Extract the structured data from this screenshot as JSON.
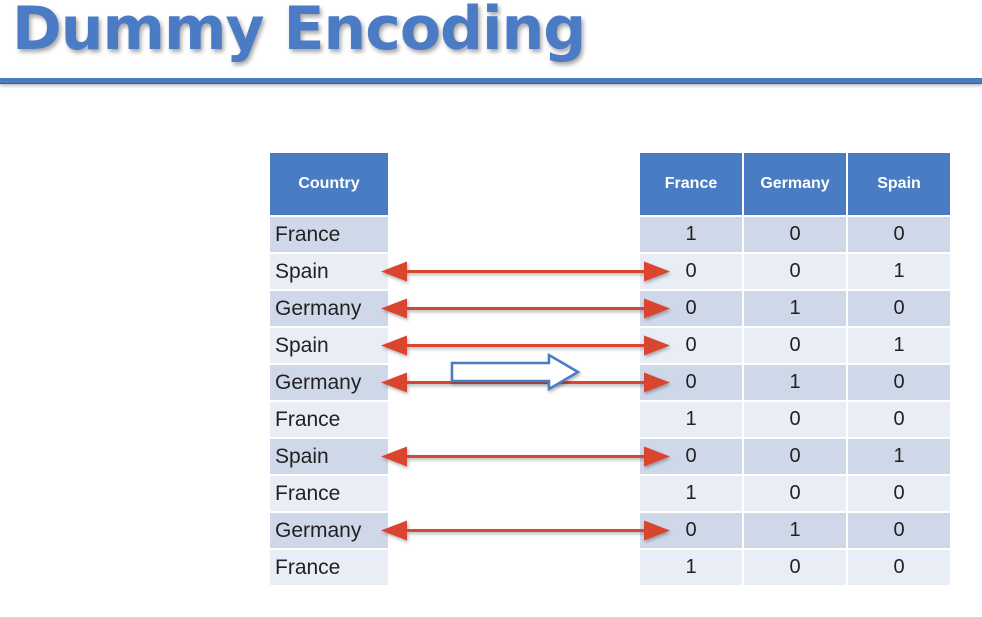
{
  "title": "Dummy Encoding",
  "source_table": {
    "header": "Country",
    "rows": [
      "France",
      "Spain",
      "Germany",
      "Spain",
      "Germany",
      "France",
      "Spain",
      "France",
      "Germany",
      "France"
    ]
  },
  "encoded_table": {
    "headers": [
      "France",
      "Germany",
      "Spain"
    ],
    "rows": [
      [
        "1",
        "0",
        "0"
      ],
      [
        "0",
        "0",
        "1"
      ],
      [
        "0",
        "1",
        "0"
      ],
      [
        "0",
        "0",
        "1"
      ],
      [
        "0",
        "1",
        "0"
      ],
      [
        "1",
        "0",
        "0"
      ],
      [
        "0",
        "0",
        "1"
      ],
      [
        "1",
        "0",
        "0"
      ],
      [
        "0",
        "1",
        "0"
      ],
      [
        "1",
        "0",
        "0"
      ]
    ]
  },
  "arrow_rows": [
    1,
    2,
    3,
    4,
    6,
    8
  ],
  "colors": {
    "title": "#4a7bc4",
    "header_fill": "#4a7cc3",
    "row_dark": "#cfd8e9",
    "row_light": "#e8edf6",
    "arrow_red": "#d9452f",
    "transform_arrow_outline": "#4a7bc4"
  },
  "icons": {
    "mapping_arrows": "double-headed-red-arrow",
    "transform_arrow": "outlined-right-arrow"
  }
}
